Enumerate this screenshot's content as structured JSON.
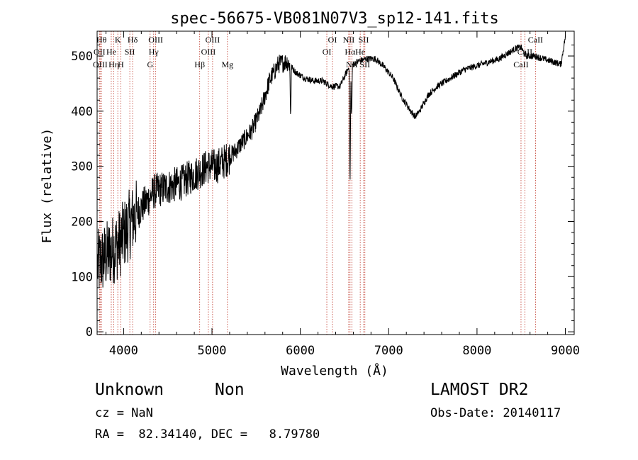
{
  "chart_data": {
    "type": "line",
    "title": "spec-56675-VB081N07V3_sp12-141.fits",
    "xlabel": "Wavelength (Å)",
    "ylabel": "Flux (relative)",
    "xlim": [
      3700,
      9100
    ],
    "ylim": [
      -5,
      545
    ],
    "xticks": [
      4000,
      5000,
      6000,
      7000,
      8000,
      9000
    ],
    "yticks": [
      0,
      100,
      200,
      300,
      400,
      500
    ],
    "line_color": "#000000",
    "marker_color": "#c0392b",
    "spectrum_anchors": {
      "x": [
        3700,
        3760,
        3820,
        3880,
        3950,
        4050,
        4150,
        4250,
        4350,
        4450,
        4550,
        4650,
        4750,
        4850,
        4950,
        5050,
        5150,
        5250,
        5350,
        5450,
        5550,
        5650,
        5750,
        5850,
        5950,
        6050,
        6150,
        6250,
        6350,
        6450,
        6550,
        6650,
        6750,
        6850,
        6950,
        7050,
        7150,
        7250,
        7300,
        7350,
        7450,
        7550,
        7650,
        7750,
        7850,
        7950,
        8050,
        8150,
        8250,
        8350,
        8450,
        8500,
        8550,
        8650,
        8750,
        8850,
        8950,
        9000
      ],
      "y": [
        120,
        130,
        140,
        150,
        160,
        190,
        215,
        235,
        255,
        260,
        265,
        270,
        280,
        290,
        300,
        300,
        310,
        325,
        345,
        365,
        400,
        455,
        485,
        490,
        470,
        460,
        455,
        455,
        445,
        445,
        480,
        490,
        495,
        495,
        480,
        460,
        425,
        400,
        390,
        400,
        430,
        445,
        455,
        465,
        475,
        480,
        485,
        490,
        495,
        505,
        515,
        515,
        500,
        500,
        495,
        490,
        485,
        535
      ]
    },
    "absorption_dips": [
      {
        "x": 5890,
        "depth": 90
      },
      {
        "x": 6563,
        "depth": 230
      },
      {
        "x": 6580,
        "depth": 100
      }
    ],
    "line_markers": [
      {
        "x": 3750,
        "labels": [
          "Hθ"
        ],
        "row": 0
      },
      {
        "x": 3727,
        "labels": [
          "OII"
        ],
        "row": 1
      },
      {
        "x": 3735,
        "labels": [
          "OIII"
        ],
        "row": 2
      },
      {
        "x": 3860,
        "labels": [
          "He"
        ],
        "row": 1
      },
      {
        "x": 3889,
        "labels": [
          "Hη"
        ],
        "row": 2
      },
      {
        "x": 3934,
        "labels": [
          "K"
        ],
        "row": 0
      },
      {
        "x": 3968,
        "labels": [
          "H"
        ],
        "row": 2
      },
      {
        "x": 4070,
        "labels": [
          "SII"
        ],
        "row": 1
      },
      {
        "x": 4102,
        "labels": [
          "Hδ"
        ],
        "row": 0
      },
      {
        "x": 4300,
        "labels": [
          "G"
        ],
        "row": 2
      },
      {
        "x": 4340,
        "labels": [
          "Hγ"
        ],
        "row": 1
      },
      {
        "x": 4363,
        "labels": [
          "OIII"
        ],
        "row": 0
      },
      {
        "x": 4861,
        "labels": [
          "Hβ"
        ],
        "row": 2
      },
      {
        "x": 4959,
        "labels": [
          "OIII"
        ],
        "row": 1
      },
      {
        "x": 5007,
        "labels": [
          "OIII"
        ],
        "row": 0
      },
      {
        "x": 5175,
        "labels": [
          "Mg"
        ],
        "row": 2
      },
      {
        "x": 6300,
        "labels": [
          "OI"
        ],
        "row": 1
      },
      {
        "x": 6364,
        "labels": [
          "OI"
        ],
        "row": 0
      },
      {
        "x": 6548,
        "labels": [
          "NII"
        ],
        "row": 0
      },
      {
        "x": 6563,
        "labels": [
          "Hα"
        ],
        "row": 1
      },
      {
        "x": 6583,
        "labels": [
          "NII"
        ],
        "row": 2
      },
      {
        "x": 6678,
        "labels": [
          "He"
        ],
        "row": 1
      },
      {
        "x": 6717,
        "labels": [
          "SII"
        ],
        "row": 0
      },
      {
        "x": 6731,
        "labels": [
          "SII"
        ],
        "row": 2
      },
      {
        "x": 8498,
        "labels": [
          "CaII"
        ],
        "row": 2
      },
      {
        "x": 8542,
        "labels": [
          "CaII"
        ],
        "row": 1
      },
      {
        "x": 8662,
        "labels": [
          "CaII"
        ],
        "row": 0
      }
    ]
  },
  "info": {
    "class": "Unknown",
    "subclass": "Non",
    "survey": "LAMOST DR2",
    "cz": "cz = NaN",
    "obs_date": "Obs-Date: 20140117",
    "coords": "RA =  82.34140, DEC =   8.79780"
  }
}
